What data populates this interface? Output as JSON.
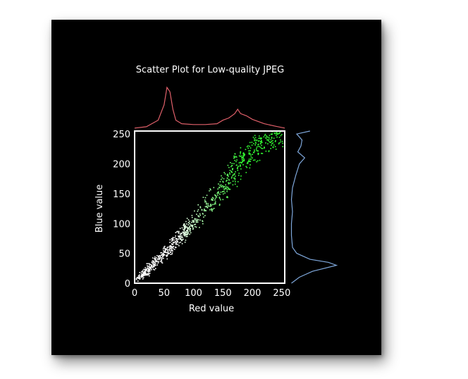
{
  "chart_data": {
    "type": "scatter",
    "title": "Scatter Plot for Low-quality JPEG",
    "xlabel": "Red value",
    "ylabel": "Blue value",
    "xlim": [
      0,
      255
    ],
    "ylim": [
      0,
      255
    ],
    "xticks": [
      0,
      50,
      100,
      150,
      200,
      250
    ],
    "yticks": [
      0,
      50,
      100,
      150,
      200,
      250
    ],
    "grid": false,
    "legend": "none",
    "colors": {
      "background": "#000000",
      "frame": "#ffffff",
      "text": "#ffffff",
      "points_low": "#ffffff",
      "points_high": "#33ff33",
      "red_histogram": "#e0606a",
      "blue_histogram": "#7fa8dc"
    },
    "scatter_band": {
      "description_x_range": [
        0,
        255
      ],
      "trend": "points cluster along y ≈ x, white at low values turning green above ~100",
      "samples": [
        [
          5,
          8
        ],
        [
          10,
          12
        ],
        [
          15,
          20
        ],
        [
          20,
          18
        ],
        [
          25,
          30
        ],
        [
          30,
          28
        ],
        [
          35,
          40
        ],
        [
          40,
          38
        ],
        [
          45,
          50
        ],
        [
          50,
          48
        ],
        [
          55,
          58
        ],
        [
          60,
          55
        ],
        [
          65,
          70
        ],
        [
          70,
          68
        ],
        [
          75,
          80
        ],
        [
          80,
          78
        ],
        [
          85,
          90
        ],
        [
          90,
          92
        ],
        [
          95,
          100
        ],
        [
          100,
          104
        ],
        [
          110,
          115
        ],
        [
          120,
          128
        ],
        [
          130,
          138
        ],
        [
          140,
          150
        ],
        [
          150,
          160
        ],
        [
          160,
          172
        ],
        [
          170,
          185
        ],
        [
          175,
          200
        ],
        [
          180,
          205
        ],
        [
          190,
          215
        ],
        [
          200,
          222
        ],
        [
          210,
          232
        ],
        [
          220,
          238
        ],
        [
          230,
          245
        ],
        [
          240,
          250
        ],
        [
          250,
          254
        ]
      ]
    },
    "marginal_red_histogram": {
      "bins": [
        0,
        20,
        40,
        50,
        55,
        60,
        65,
        70,
        80,
        100,
        120,
        140,
        150,
        160,
        170,
        175,
        180,
        190,
        200,
        220,
        240,
        255
      ],
      "counts": [
        0.02,
        0.05,
        0.2,
        0.55,
        0.95,
        0.85,
        0.45,
        0.2,
        0.12,
        0.1,
        0.1,
        0.12,
        0.2,
        0.25,
        0.35,
        0.45,
        0.35,
        0.3,
        0.22,
        0.12,
        0.06,
        0.02
      ]
    },
    "marginal_blue_histogram": {
      "bins": [
        0,
        10,
        20,
        30,
        35,
        40,
        50,
        60,
        80,
        100,
        120,
        140,
        160,
        180,
        200,
        210,
        220,
        230,
        240,
        250,
        255
      ],
      "counts": [
        0.1,
        0.25,
        0.5,
        0.95,
        0.8,
        0.45,
        0.2,
        0.12,
        0.1,
        0.1,
        0.12,
        0.1,
        0.12,
        0.18,
        0.25,
        0.35,
        0.22,
        0.28,
        0.3,
        0.2,
        0.45
      ]
    }
  }
}
